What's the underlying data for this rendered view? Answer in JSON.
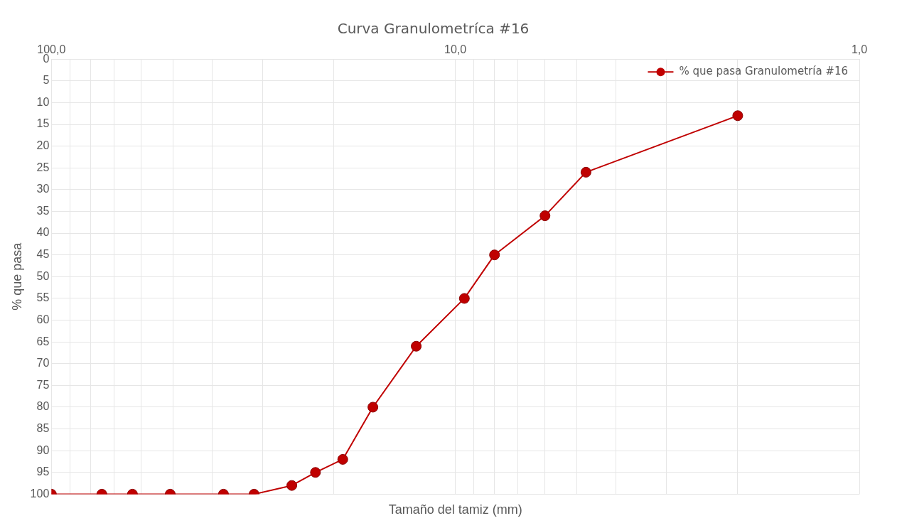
{
  "chart_data": {
    "type": "line",
    "title": "Curva Granulometríca #16",
    "xlabel": "Tamaño del tamiz (mm)",
    "ylabel": "% que pasa",
    "log": "x",
    "xlim": [
      100,
      1
    ],
    "ylim": [
      100,
      0
    ],
    "xticks": [
      {
        "value": 100,
        "label": "100,0"
      },
      {
        "value": 90,
        "label": null
      },
      {
        "value": 80,
        "label": null
      },
      {
        "value": 70,
        "label": null
      },
      {
        "value": 60,
        "label": null
      },
      {
        "value": 50,
        "label": null
      },
      {
        "value": 40,
        "label": null
      },
      {
        "value": 30,
        "label": null
      },
      {
        "value": 20,
        "label": null
      },
      {
        "value": 10,
        "label": "10,0"
      },
      {
        "value": 9,
        "label": null
      },
      {
        "value": 8,
        "label": null
      },
      {
        "value": 7,
        "label": null
      },
      {
        "value": 6,
        "label": null
      },
      {
        "value": 5,
        "label": null
      },
      {
        "value": 4,
        "label": null
      },
      {
        "value": 3,
        "label": null
      },
      {
        "value": 2,
        "label": null
      },
      {
        "value": 1,
        "label": "1,0"
      }
    ],
    "yticks": [
      0,
      5,
      10,
      15,
      20,
      25,
      30,
      35,
      40,
      45,
      50,
      55,
      60,
      65,
      70,
      75,
      80,
      85,
      90,
      95,
      100
    ],
    "grid": true,
    "legend": "top right",
    "marker": "circle",
    "line_style": "solid",
    "series": [
      {
        "name": "% que pasa Granulometría #16",
        "color": "#c00000",
        "x": [
          100,
          75,
          63,
          50.8,
          37.5,
          31.5,
          25.4,
          22.2,
          19,
          16,
          12.5,
          9.5,
          8,
          6,
          4.75,
          2
        ],
        "values": [
          100,
          100,
          100,
          100,
          100,
          100,
          98,
          95,
          92,
          80,
          66,
          55,
          45,
          36,
          26,
          13
        ]
      }
    ]
  }
}
